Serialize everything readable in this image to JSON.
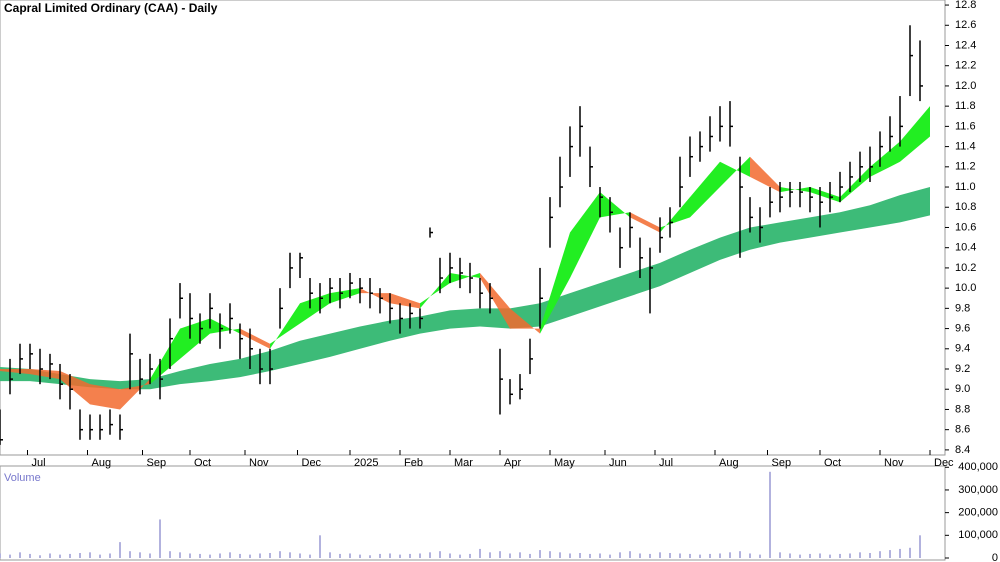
{
  "chart_data": [
    {
      "type": "ohlc",
      "title": "Capral Limited Ordinary (CAA) - Daily",
      "color": "#000000",
      "x": [
        0,
        4,
        8,
        12,
        16,
        20,
        24,
        28,
        32,
        36,
        40,
        44,
        48,
        52,
        56,
        60,
        64,
        68,
        72,
        76,
        80,
        84,
        88,
        92,
        96,
        100,
        104,
        108,
        112,
        116,
        120,
        124,
        128,
        132,
        136,
        140,
        144,
        148,
        152,
        156,
        160,
        164,
        168,
        172,
        176,
        180,
        184,
        188,
        192,
        196,
        200,
        204,
        208,
        212,
        216,
        220,
        224,
        228,
        232,
        236,
        240,
        244,
        248,
        252,
        256,
        260,
        264,
        268,
        272,
        276,
        280,
        284,
        288,
        292,
        296,
        300,
        304,
        308,
        312,
        316,
        320,
        324,
        328,
        332,
        336,
        340,
        344,
        348,
        352,
        356,
        360,
        364,
        368
      ],
      "high": [
        8.8,
        9.3,
        9.45,
        9.45,
        9.4,
        9.35,
        9.25,
        9.15,
        8.8,
        8.75,
        8.75,
        8.8,
        8.75,
        9.55,
        9.3,
        9.35,
        9.3,
        9.7,
        10.05,
        9.95,
        9.75,
        9.95,
        9.75,
        9.85,
        9.65,
        9.6,
        9.4,
        9.4,
        10.0,
        10.35,
        10.35,
        10.1,
        10.05,
        10.1,
        10.1,
        10.15,
        10.1,
        10.1,
        10.0,
        9.95,
        9.85,
        9.85,
        9.8,
        10.6,
        10.3,
        10.35,
        10.3,
        10.25,
        10.1,
        10.05,
        9.4,
        9.1,
        9.15,
        9.5,
        10.2,
        10.9,
        11.3,
        11.6,
        11.8,
        11.4,
        11.0,
        10.9,
        10.6,
        10.75,
        10.5,
        10.4,
        10.7,
        10.8,
        11.3,
        11.5,
        11.55,
        11.7,
        11.8,
        11.85,
        11.3,
        10.9,
        10.8,
        11.0,
        11.05,
        11.05,
        11.05,
        11.0,
        11.0,
        11.05,
        11.15,
        11.25,
        11.35,
        11.4,
        11.55,
        11.7,
        11.9,
        12.6,
        12.45
      ],
      "low": [
        8.45,
        8.95,
        9.15,
        9.2,
        9.05,
        9.1,
        8.9,
        8.8,
        8.5,
        8.5,
        8.5,
        8.55,
        8.5,
        9.0,
        8.95,
        9.05,
        8.9,
        9.2,
        9.7,
        9.5,
        9.45,
        9.6,
        9.4,
        9.55,
        9.3,
        9.2,
        9.05,
        9.05,
        9.6,
        10.0,
        10.1,
        9.8,
        9.75,
        9.85,
        9.8,
        9.9,
        9.85,
        9.8,
        9.75,
        9.65,
        9.55,
        9.6,
        9.6,
        10.5,
        9.95,
        10.05,
        10.0,
        9.95,
        9.8,
        9.75,
        8.75,
        8.85,
        8.9,
        9.15,
        9.6,
        10.4,
        10.8,
        11.1,
        11.3,
        11.0,
        10.7,
        10.55,
        10.2,
        10.4,
        10.1,
        9.75,
        10.35,
        10.5,
        10.8,
        11.1,
        11.25,
        11.35,
        11.45,
        11.4,
        10.3,
        10.55,
        10.45,
        10.7,
        10.75,
        10.8,
        10.8,
        10.75,
        10.6,
        10.75,
        10.85,
        10.95,
        11.05,
        11.05,
        11.2,
        11.35,
        11.4,
        11.9,
        11.85
      ],
      "close": [
        8.5,
        9.1,
        9.3,
        9.35,
        9.2,
        9.25,
        9.05,
        9.0,
        8.6,
        8.6,
        8.6,
        8.65,
        8.6,
        9.35,
        9.1,
        9.2,
        9.1,
        9.5,
        9.9,
        9.7,
        9.6,
        9.8,
        9.6,
        9.7,
        9.5,
        9.4,
        9.2,
        9.2,
        9.8,
        10.2,
        10.3,
        9.95,
        9.9,
        10.0,
        9.95,
        10.05,
        10.0,
        9.95,
        9.9,
        9.8,
        9.7,
        9.75,
        9.7,
        10.55,
        10.1,
        10.2,
        10.15,
        10.1,
        9.95,
        9.9,
        9.1,
        8.95,
        9.0,
        9.3,
        9.9,
        10.7,
        11.0,
        11.4,
        11.6,
        11.2,
        10.9,
        10.75,
        10.4,
        10.6,
        10.3,
        10.2,
        10.5,
        10.65,
        11.0,
        11.3,
        11.4,
        11.5,
        11.6,
        11.6,
        11.0,
        10.7,
        10.6,
        10.85,
        10.9,
        10.95,
        10.95,
        10.9,
        10.85,
        10.9,
        11.0,
        11.1,
        11.2,
        11.2,
        11.4,
        11.5,
        11.6,
        12.3,
        12.0
      ],
      "band_x": [
        0,
        12,
        24,
        36,
        48,
        60,
        72,
        84,
        96,
        108,
        120,
        132,
        144,
        156,
        168,
        180,
        192,
        204,
        216,
        228,
        240,
        252,
        264,
        276,
        288,
        300,
        312,
        324,
        336,
        348,
        360,
        372
      ],
      "fast": [
        9.18,
        9.15,
        9.1,
        8.85,
        8.8,
        9.1,
        9.6,
        9.7,
        9.55,
        9.4,
        9.85,
        9.95,
        10.0,
        9.85,
        9.8,
        10.15,
        10.1,
        9.6,
        9.6,
        10.55,
        10.95,
        10.7,
        10.55,
        10.9,
        11.25,
        11.1,
        10.95,
        11.0,
        10.9,
        11.2,
        11.45,
        11.8
      ],
      "slow": [
        9.2,
        9.2,
        9.18,
        9.05,
        9.0,
        9.05,
        9.3,
        9.55,
        9.6,
        9.45,
        9.65,
        9.85,
        9.95,
        9.95,
        9.85,
        10.05,
        10.15,
        9.8,
        9.55,
        10.1,
        10.7,
        10.75,
        10.6,
        10.7,
        11.0,
        11.3,
        11.0,
        10.95,
        10.85,
        11.1,
        11.25,
        11.5
      ],
      "long_top": [
        9.22,
        9.2,
        9.15,
        9.1,
        9.08,
        9.1,
        9.18,
        9.25,
        9.3,
        9.38,
        9.48,
        9.55,
        9.62,
        9.68,
        9.72,
        9.78,
        9.8,
        9.8,
        9.85,
        9.95,
        10.05,
        10.15,
        10.25,
        10.38,
        10.5,
        10.6,
        10.65,
        10.7,
        10.75,
        10.82,
        10.92,
        11.0
      ],
      "long_bottom": [
        9.08,
        9.08,
        9.05,
        9.02,
        9.0,
        9.0,
        9.05,
        9.08,
        9.12,
        9.18,
        9.25,
        9.32,
        9.4,
        9.48,
        9.55,
        9.6,
        9.62,
        9.6,
        9.62,
        9.72,
        9.82,
        9.92,
        10.02,
        10.15,
        10.28,
        10.38,
        10.45,
        10.5,
        10.55,
        10.6,
        10.65,
        10.72
      ],
      "fast_up_color": "#22ee22",
      "fast_down_color": "#f26a2e",
      "long_color": "#3dbb78",
      "xlim": [
        0,
        378
      ],
      "ylim": [
        8.3,
        12.85
      ],
      "xticks": [
        {
          "value": 11,
          "label": "Jul"
        },
        {
          "value": 35,
          "label": "Aug"
        },
        {
          "value": 57,
          "label": "Sep"
        },
        {
          "value": 76,
          "label": "Oct"
        },
        {
          "value": 98,
          "label": "Nov"
        },
        {
          "value": 119,
          "label": "Dec"
        },
        {
          "value": 140,
          "label": "2025"
        },
        {
          "value": 160,
          "label": "Feb"
        },
        {
          "value": 180,
          "label": "Mar"
        },
        {
          "value": 200,
          "label": "Apr"
        },
        {
          "value": 220,
          "label": "May"
        },
        {
          "value": 242,
          "label": "Jun"
        },
        {
          "value": 262,
          "label": "Jul"
        },
        {
          "value": 286,
          "label": "Aug"
        },
        {
          "value": 307,
          "label": "Sep"
        },
        {
          "value": 328,
          "label": "Oct"
        },
        {
          "value": 352,
          "label": "Nov"
        },
        {
          "value": 372,
          "label": "Dec"
        }
      ],
      "yticks": [
        8.4,
        8.6,
        8.8,
        {
          "value": 9,
          "label": "9.0"
        },
        9.2,
        9.4,
        9.6,
        9.8,
        {
          "value": 10,
          "label": "10.0"
        },
        10.2,
        10.4,
        10.6,
        10.8,
        {
          "value": 11,
          "label": "11.0"
        },
        11.2,
        11.4,
        11.6,
        11.8,
        {
          "value": 12,
          "label": "12.0"
        },
        12.2,
        12.4,
        12.6,
        12.8
      ]
    },
    {
      "type": "bar",
      "title": "Volume",
      "color": "#7f7fc8",
      "x": [
        0,
        4,
        8,
        12,
        16,
        20,
        24,
        28,
        32,
        36,
        40,
        44,
        48,
        52,
        56,
        60,
        64,
        68,
        72,
        76,
        80,
        84,
        88,
        92,
        96,
        100,
        104,
        108,
        112,
        116,
        120,
        124,
        128,
        132,
        136,
        140,
        144,
        148,
        152,
        156,
        160,
        164,
        168,
        172,
        176,
        180,
        184,
        188,
        192,
        196,
        200,
        204,
        208,
        212,
        216,
        220,
        224,
        228,
        232,
        236,
        240,
        244,
        248,
        252,
        256,
        260,
        264,
        268,
        272,
        276,
        280,
        284,
        288,
        292,
        296,
        300,
        304,
        308,
        312,
        316,
        320,
        324,
        328,
        332,
        336,
        340,
        344,
        348,
        352,
        356,
        360,
        364,
        368
      ],
      "values": [
        20000,
        15000,
        25000,
        18000,
        12000,
        20000,
        15000,
        18000,
        22000,
        25000,
        15000,
        20000,
        70000,
        30000,
        25000,
        20000,
        170000,
        30000,
        25000,
        20000,
        18000,
        15000,
        20000,
        25000,
        18000,
        15000,
        20000,
        22000,
        30000,
        25000,
        20000,
        15000,
        100000,
        25000,
        18000,
        20000,
        15000,
        12000,
        18000,
        20000,
        15000,
        18000,
        20000,
        25000,
        30000,
        20000,
        15000,
        18000,
        40000,
        25000,
        30000,
        20000,
        25000,
        18000,
        35000,
        30000,
        25000,
        20000,
        22000,
        18000,
        20000,
        15000,
        25000,
        30000,
        20000,
        18000,
        25000,
        22000,
        20000,
        18000,
        15000,
        18000,
        20000,
        25000,
        30000,
        20000,
        15000,
        380000,
        25000,
        20000,
        15000,
        18000,
        20000,
        15000,
        18000,
        20000,
        25000,
        22000,
        30000,
        35000,
        40000,
        45000,
        100000
      ],
      "xlim": [
        0,
        378
      ],
      "ylim": [
        0,
        410000
      ],
      "yticks": [
        0,
        {
          "value": 100000,
          "label": "100,000"
        },
        {
          "value": 200000,
          "label": "200,000"
        },
        {
          "value": 300000,
          "label": "300,000"
        },
        {
          "value": 400000,
          "label": "400,000"
        }
      ]
    }
  ]
}
